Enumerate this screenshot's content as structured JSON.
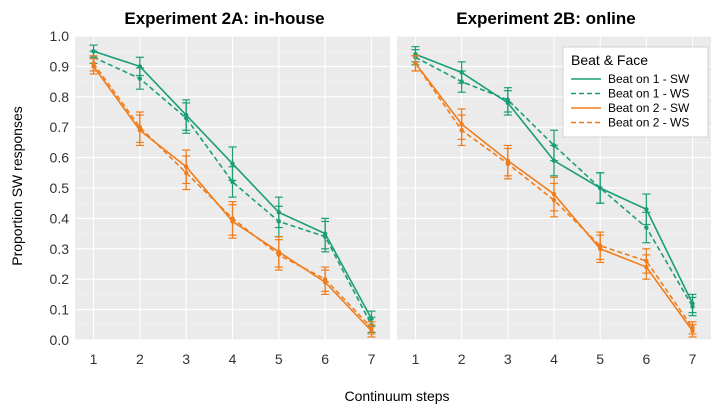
{
  "chart_data": {
    "type": "line",
    "xlabel": "Continuum steps",
    "ylabel": "Proportion SW responses",
    "x": [
      1,
      2,
      3,
      4,
      5,
      6,
      7
    ],
    "xticks": [
      "1",
      "2",
      "3",
      "4",
      "5",
      "6",
      "7"
    ],
    "ylim": [
      0.0,
      1.0
    ],
    "yticks": [
      "0.0",
      "0.1",
      "0.2",
      "0.3",
      "0.4",
      "0.5",
      "0.6",
      "0.7",
      "0.8",
      "0.9",
      "1.0"
    ],
    "grid": true,
    "legend": {
      "title": "Beat & Face",
      "placement": "top-right",
      "entries": [
        "Beat on 1 - SW",
        "Beat on 1 - WS",
        "Beat on 2 - SW",
        "Beat on 2 - WS"
      ]
    },
    "colors": {
      "beat1": "#1b9e77",
      "beat2": "#f07d1a"
    },
    "panels": [
      {
        "title": "Experiment 2A: in-house",
        "series": [
          {
            "name": "Beat on 1 - SW",
            "color": "#1b9e77",
            "dash": false,
            "values": [
              0.95,
              0.9,
              0.74,
              0.58,
              0.42,
              0.35,
              0.07
            ],
            "err": [
              0.02,
              0.03,
              0.05,
              0.055,
              0.05,
              0.05,
              0.025
            ]
          },
          {
            "name": "Beat on 1 - WS",
            "color": "#1b9e77",
            "dash": true,
            "values": [
              0.93,
              0.86,
              0.73,
              0.52,
              0.39,
              0.34,
              0.05
            ],
            "err": [
              0.02,
              0.035,
              0.05,
              0.05,
              0.05,
              0.05,
              0.025
            ]
          },
          {
            "name": "Beat on 2 - SW",
            "color": "#f07d1a",
            "dash": false,
            "values": [
              0.9,
              0.69,
              0.57,
              0.39,
              0.29,
              0.19,
              0.03
            ],
            "err": [
              0.025,
              0.05,
              0.055,
              0.055,
              0.05,
              0.04,
              0.02
            ]
          },
          {
            "name": "Beat on 2 - WS",
            "color": "#f07d1a",
            "dash": true,
            "values": [
              0.91,
              0.7,
              0.55,
              0.4,
              0.28,
              0.2,
              0.04
            ],
            "err": [
              0.025,
              0.05,
              0.055,
              0.055,
              0.05,
              0.04,
              0.02
            ]
          }
        ]
      },
      {
        "title": "Experiment 2B: online",
        "series": [
          {
            "name": "Beat on 1 - SW",
            "color": "#1b9e77",
            "dash": false,
            "values": [
              0.94,
              0.88,
              0.78,
              0.59,
              0.5,
              0.43,
              0.12
            ],
            "err": [
              0.025,
              0.035,
              0.04,
              0.05,
              0.05,
              0.05,
              0.03
            ]
          },
          {
            "name": "Beat on 1 - WS",
            "color": "#1b9e77",
            "dash": true,
            "values": [
              0.93,
              0.85,
              0.79,
              0.64,
              0.5,
              0.37,
              0.11
            ],
            "err": [
              0.025,
              0.035,
              0.04,
              0.05,
              0.05,
              0.05,
              0.03
            ]
          },
          {
            "name": "Beat on 2 - SW",
            "color": "#f07d1a",
            "dash": false,
            "values": [
              0.91,
              0.71,
              0.59,
              0.48,
              0.3,
              0.24,
              0.03
            ],
            "err": [
              0.025,
              0.05,
              0.05,
              0.055,
              0.045,
              0.04,
              0.02
            ]
          },
          {
            "name": "Beat on 2 - WS",
            "color": "#f07d1a",
            "dash": true,
            "values": [
              0.91,
              0.69,
              0.58,
              0.46,
              0.31,
              0.26,
              0.04
            ],
            "err": [
              0.025,
              0.05,
              0.05,
              0.055,
              0.045,
              0.04,
              0.02
            ]
          }
        ]
      }
    ]
  }
}
